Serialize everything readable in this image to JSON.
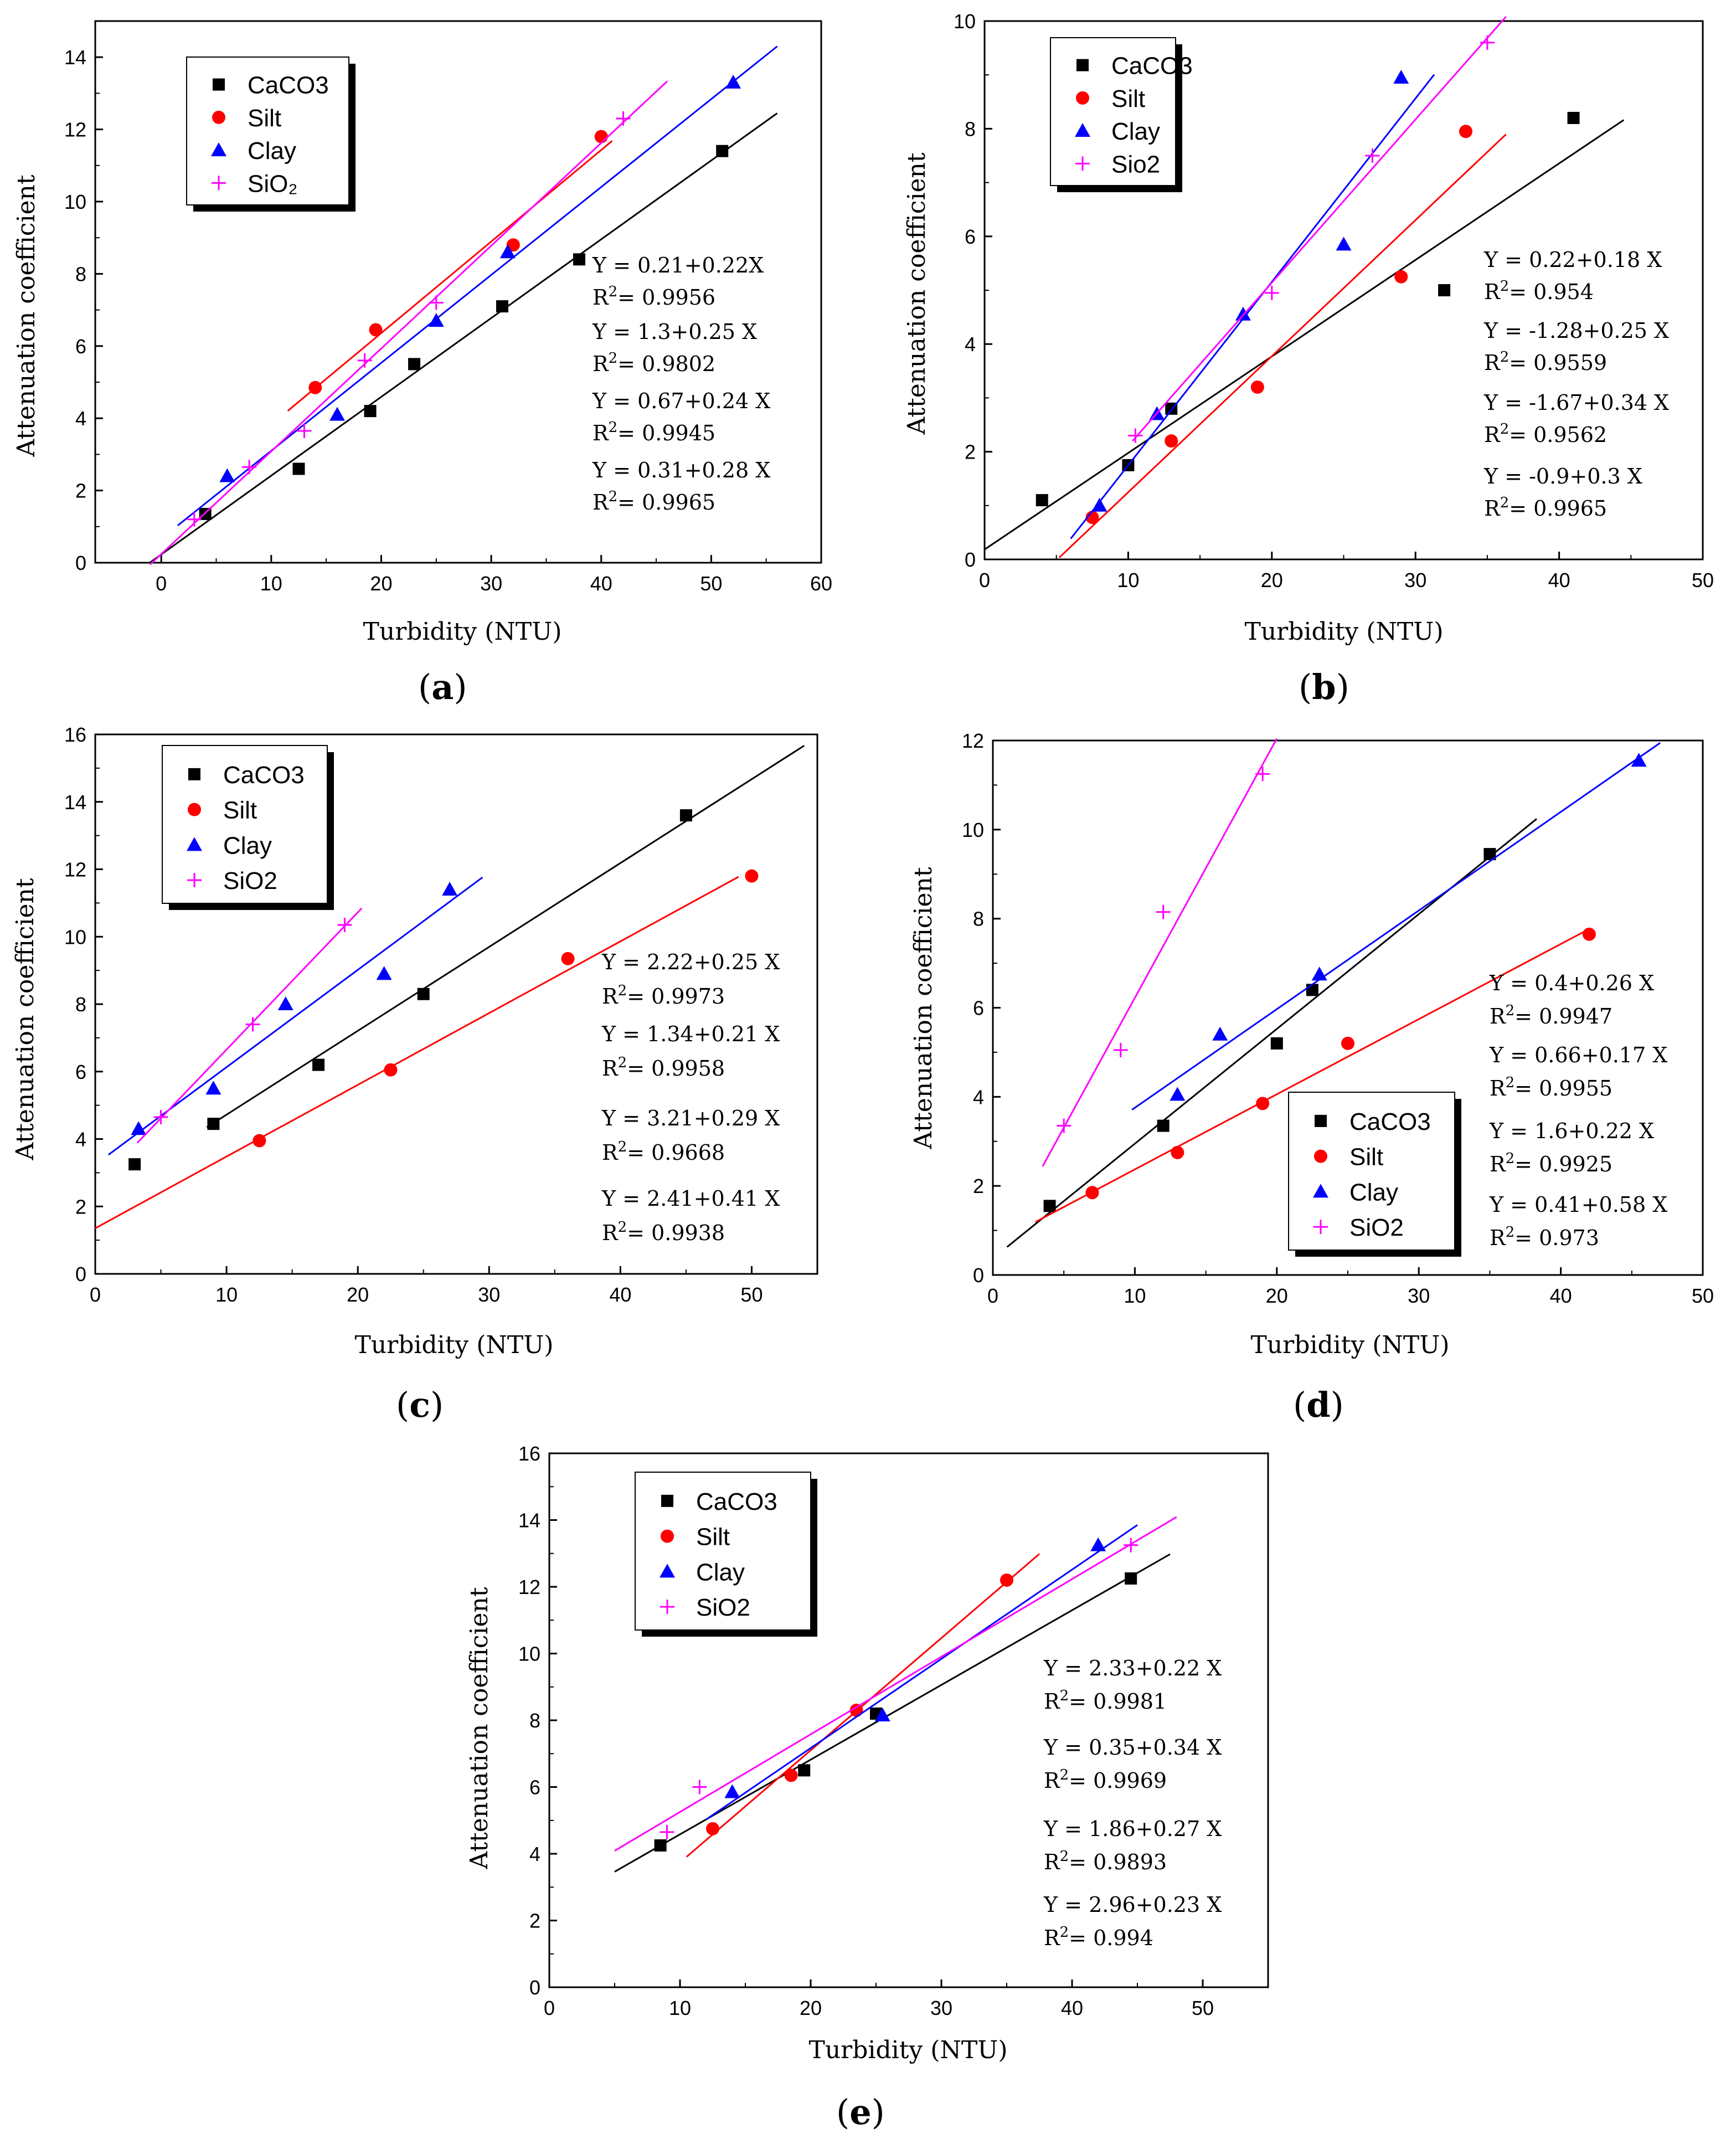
{
  "chart_data": [
    {
      "type": "scatter",
      "panel_label": "a",
      "xlabel": "Turbidity (NTU)",
      "ylabel": "Attenuation coefficient",
      "xlim": [
        -6,
        60
      ],
      "ylim": [
        0,
        15
      ],
      "xticks": [
        0,
        10,
        20,
        30,
        40,
        50,
        60
      ],
      "yticks": [
        0,
        2,
        4,
        6,
        8,
        10,
        12,
        14
      ],
      "legend_position": "top-left",
      "series": [
        {
          "name": "CaCO3",
          "marker": "square",
          "color": "#000000",
          "points": [
            [
              4,
              1.35
            ],
            [
              12.5,
              2.6
            ],
            [
              19,
              4.2
            ],
            [
              23,
              5.5
            ],
            [
              31,
              7.1
            ],
            [
              38,
              8.4
            ],
            [
              51,
              11.4
            ]
          ],
          "fit": [
            -1,
            56
          ]
        },
        {
          "name": "Silt",
          "marker": "circle",
          "color": "#ff0000",
          "points": [
            [
              14,
              4.85
            ],
            [
              19.5,
              6.45
            ],
            [
              32,
              8.8
            ],
            [
              40,
              11.8
            ]
          ],
          "fit": [
            11.5,
            41
          ]
        },
        {
          "name": "Clay",
          "marker": "triangle",
          "color": "#0000ff",
          "points": [
            [
              6,
              2.4
            ],
            [
              16,
              4.1
            ],
            [
              25,
              6.7
            ],
            [
              31.5,
              8.6
            ],
            [
              52,
              13.3
            ]
          ],
          "fit": [
            1.5,
            56
          ]
        },
        {
          "name": "SiO₂",
          "marker": "plus",
          "color": "#ff00ff",
          "points": [
            [
              3,
              1.2
            ],
            [
              8,
              2.65
            ],
            [
              13,
              3.65
            ],
            [
              18.5,
              5.6
            ],
            [
              25,
              7.2
            ],
            [
              42,
              12.3
            ]
          ],
          "fit": [
            -1,
            46
          ]
        }
      ],
      "equations": [
        {
          "line": "Y = 0.21+0.22X",
          "r2": "0.9956"
        },
        {
          "line": "Y = 1.3+0.25 X",
          "r2": "0.9802"
        },
        {
          "line": "Y = 0.67+0.24 X",
          "r2": "0.9945"
        },
        {
          "line": "Y = 0.31+0.28 X",
          "r2": "0.9965"
        }
      ]
    },
    {
      "type": "scatter",
      "panel_label": "b",
      "xlabel": "Turbidity (NTU)",
      "ylabel": "Attenuation coefficient",
      "xlim": [
        0,
        50
      ],
      "ylim": [
        0,
        10
      ],
      "xticks": [
        0,
        10,
        20,
        30,
        40,
        50
      ],
      "yticks": [
        0,
        2,
        4,
        6,
        8,
        10
      ],
      "legend_position": "top-left",
      "series": [
        {
          "name": "CaCO3",
          "marker": "square",
          "color": "#000000",
          "points": [
            [
              4,
              1.1
            ],
            [
              10,
              1.75
            ],
            [
              13,
              2.8
            ],
            [
              32,
              5.0
            ],
            [
              41,
              8.2
            ]
          ],
          "fit": [
            0,
            44.5
          ]
        },
        {
          "name": "Silt",
          "marker": "circle",
          "color": "#ff0000",
          "points": [
            [
              7.5,
              0.78
            ],
            [
              13,
              2.2
            ],
            [
              19,
              3.2
            ],
            [
              29,
              5.25
            ],
            [
              33.5,
              7.95
            ]
          ],
          "fit": [
            5.2,
            36.3
          ]
        },
        {
          "name": "Clay",
          "marker": "triangle",
          "color": "#0000ff",
          "points": [
            [
              8,
              1.0
            ],
            [
              12,
              2.7
            ],
            [
              18,
              4.55
            ],
            [
              25,
              5.85
            ],
            [
              29,
              8.95
            ]
          ],
          "fit": [
            6,
            31.3
          ]
        },
        {
          "name": "Sio2",
          "marker": "plus",
          "color": "#ff00ff",
          "points": [
            [
              10.5,
              2.3
            ],
            [
              20,
              4.95
            ],
            [
              27,
              7.5
            ],
            [
              35,
              9.6
            ]
          ],
          "fit": [
            10.3,
            36.3
          ]
        }
      ],
      "equations": [
        {
          "line": "Y = 0.22+0.18 X",
          "r2": "0.954"
        },
        {
          "line": "Y = -1.28+0.25 X",
          "r2": "0.9559"
        },
        {
          "line": "Y = -1.67+0.34 X",
          "r2": "0.9562"
        },
        {
          "line": "Y = -0.9+0.3 X",
          "r2": "0.9965"
        }
      ]
    },
    {
      "type": "scatter",
      "panel_label": "c",
      "xlabel": "Turbidity (NTU)",
      "ylabel": "Attenuation coefficient",
      "xlim": [
        0,
        55
      ],
      "ylim": [
        0,
        16
      ],
      "xticks": [
        0,
        10,
        20,
        30,
        40,
        50
      ],
      "yticks": [
        0,
        2,
        4,
        6,
        8,
        10,
        12,
        14,
        16
      ],
      "legend_position": "top-left",
      "series": [
        {
          "name": "CaCO3",
          "marker": "square",
          "color": "#000000",
          "points": [
            [
              3,
              3.25
            ],
            [
              9,
              4.45
            ],
            [
              17,
              6.2
            ],
            [
              25,
              8.3
            ],
            [
              45,
              13.6
            ]
          ],
          "fit": [
            8.5,
            54
          ]
        },
        {
          "name": "Silt",
          "marker": "circle",
          "color": "#ff0000",
          "points": [
            [
              12.5,
              3.95
            ],
            [
              22.5,
              6.05
            ],
            [
              36,
              9.35
            ],
            [
              50,
              11.8
            ]
          ],
          "fit": [
            0,
            49
          ]
        },
        {
          "name": "Clay",
          "marker": "triangle",
          "color": "#0000ff",
          "points": [
            [
              3.3,
              4.3
            ],
            [
              9,
              5.5
            ],
            [
              14.5,
              8.0
            ],
            [
              22,
              8.9
            ],
            [
              27,
              11.4
            ]
          ],
          "fit": [
            1,
            29.5
          ]
        },
        {
          "name": "SiO2",
          "marker": "plus",
          "color": "#ff00ff",
          "points": [
            [
              5,
              4.65
            ],
            [
              12,
              7.4
            ],
            [
              19,
              10.35
            ]
          ],
          "fit": [
            3.2,
            20.3
          ]
        }
      ],
      "equations": [
        {
          "line": "Y = 2.22+0.25 X",
          "r2": "0.9973"
        },
        {
          "line": "Y = 1.34+0.21 X",
          "r2": "0.9958"
        },
        {
          "line": "Y = 3.21+0.29 X",
          "r2": "0.9668"
        },
        {
          "line": "Y = 2.41+0.41 X",
          "r2": "0.9938"
        }
      ]
    },
    {
      "type": "scatter",
      "panel_label": "d",
      "xlabel": "Turbidity (NTU)",
      "ylabel": "Attenuation coefficient",
      "xlim": [
        0,
        50
      ],
      "ylim": [
        0,
        12
      ],
      "xticks": [
        0,
        10,
        20,
        30,
        40,
        50
      ],
      "yticks": [
        0,
        2,
        4,
        6,
        8,
        10,
        12
      ],
      "legend_position": "bottom-right",
      "series": [
        {
          "name": "CaCO3",
          "marker": "square",
          "color": "#000000",
          "points": [
            [
              4,
              1.55
            ],
            [
              12,
              3.35
            ],
            [
              20,
              5.2
            ],
            [
              22.5,
              6.4
            ],
            [
              35,
              9.45
            ]
          ],
          "fit": [
            1,
            38.3
          ]
        },
        {
          "name": "Silt",
          "marker": "circle",
          "color": "#ff0000",
          "points": [
            [
              7,
              1.85
            ],
            [
              13,
              2.75
            ],
            [
              19,
              3.85
            ],
            [
              25,
              5.2
            ],
            [
              42,
              7.65
            ]
          ],
          "fit": [
            3,
            42
          ]
        },
        {
          "name": "Clay",
          "marker": "triangle",
          "color": "#0000ff",
          "points": [
            [
              13,
              4.05
            ],
            [
              16,
              5.4
            ],
            [
              23,
              6.75
            ],
            [
              45.5,
              11.55
            ]
          ],
          "fit": [
            9.8,
            47
          ]
        },
        {
          "name": "SiO2",
          "marker": "plus",
          "color": "#ff00ff",
          "points": [
            [
              5,
              3.35
            ],
            [
              9,
              5.05
            ],
            [
              12,
              8.15
            ],
            [
              19,
              11.25
            ]
          ],
          "fit": [
            3.5,
            20
          ]
        }
      ],
      "equations": [
        {
          "line": "Y = 0.4+0.26 X",
          "r2": "0.9947"
        },
        {
          "line": "Y = 0.66+0.17 X",
          "r2": "0.9955"
        },
        {
          "line": "Y = 1.6+0.22 X",
          "r2": "0.9925"
        },
        {
          "line": "Y = 0.41+0.58 X",
          "r2": "0.973"
        }
      ]
    },
    {
      "type": "scatter",
      "panel_label": "e",
      "xlabel": "Turbidity (NTU)",
      "ylabel": "Attenuation coefficient",
      "xlim": [
        0,
        55
      ],
      "ylim": [
        0,
        16
      ],
      "xticks": [
        0,
        10,
        20,
        30,
        40,
        50
      ],
      "yticks": [
        0,
        2,
        4,
        6,
        8,
        10,
        12,
        14,
        16
      ],
      "legend_position": "top-left",
      "series": [
        {
          "name": "CaCO3",
          "marker": "square",
          "color": "#000000",
          "points": [
            [
              8.5,
              4.25
            ],
            [
              19.5,
              6.5
            ],
            [
              25,
              8.2
            ],
            [
              44.5,
              12.25
            ]
          ],
          "fit": [
            5,
            47.5
          ]
        },
        {
          "name": "Silt",
          "marker": "circle",
          "color": "#ff0000",
          "points": [
            [
              12.5,
              4.75
            ],
            [
              18.5,
              6.35
            ],
            [
              23.5,
              8.3
            ],
            [
              35,
              12.2
            ]
          ],
          "fit": [
            10.5,
            37.5
          ]
        },
        {
          "name": "Clay",
          "marker": "triangle",
          "color": "#0000ff",
          "points": [
            [
              14,
              5.85
            ],
            [
              25.5,
              8.15
            ],
            [
              42,
              13.25
            ]
          ],
          "fit": [
            12,
            45
          ]
        },
        {
          "name": "SiO2",
          "marker": "plus",
          "color": "#ff00ff",
          "points": [
            [
              9,
              4.65
            ],
            [
              11.5,
              6.0
            ],
            [
              44.5,
              13.25
            ]
          ],
          "fit": [
            5,
            48
          ]
        }
      ],
      "equations": [
        {
          "line": "Y = 2.33+0.22 X",
          "r2": "0.9981"
        },
        {
          "line": "Y = 0.35+0.34 X",
          "r2": "0.9969"
        },
        {
          "line": "Y = 1.86+0.27 X",
          "r2": "0.9893"
        },
        {
          "line": "Y = 2.96+0.23 X",
          "r2": "0.994"
        }
      ]
    }
  ]
}
